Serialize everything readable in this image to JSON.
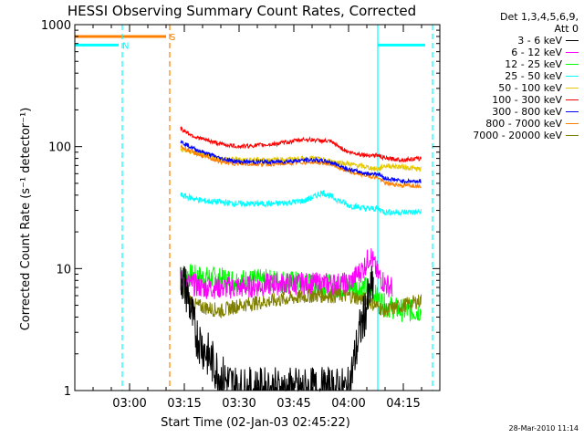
{
  "chart_data": {
    "type": "line",
    "title": "HESSI Observing Summary Count Rates, Corrected",
    "xlabel": "Start Time (02-Jan-03 02:45:22)",
    "ylabel": "Corrected Count Rate (s⁻¹ detector⁻¹)",
    "yscale": "log",
    "ylim": [
      1,
      1000
    ],
    "xlim": [
      "02:45",
      "04:25"
    ],
    "x_ticks": [
      "03:00",
      "03:15",
      "03:30",
      "03:45",
      "04:00",
      "04:15"
    ],
    "y_ticks": [
      "1",
      "10",
      "100",
      "1000"
    ],
    "legend_header": [
      "Det 1,3,4,5,6,9,",
      "Att 0"
    ],
    "legend_position": "right",
    "series": [
      {
        "name": "3 - 6 keV",
        "color": "#000000",
        "x": [
          "03:14",
          "03:16",
          "03:18",
          "03:20",
          "03:25",
          "03:30",
          "03:40",
          "03:50",
          "03:55",
          "04:00",
          "04:03",
          "04:05",
          "04:07"
        ],
        "values": [
          9,
          6,
          3,
          2.3,
          1.3,
          1,
          1,
          1,
          1,
          1,
          3,
          5,
          8
        ]
      },
      {
        "name": "6 - 12 keV",
        "color": "#ff00ff",
        "x": [
          "03:14",
          "03:20",
          "03:30",
          "03:40",
          "03:50",
          "04:00",
          "04:04",
          "04:06",
          "04:08",
          "04:10",
          "04:12"
        ],
        "values": [
          8,
          7,
          7,
          7.5,
          7.5,
          7.5,
          10,
          13,
          9,
          7.5,
          7
        ]
      },
      {
        "name": "12 - 25 keV",
        "color": "#00ff00",
        "x": [
          "03:14",
          "03:20",
          "03:30",
          "03:40",
          "03:50",
          "04:00",
          "04:05",
          "04:10",
          "04:15",
          "04:20"
        ],
        "values": [
          9,
          8.5,
          8,
          8,
          7.5,
          7,
          7,
          5,
          4.5,
          4.5
        ]
      },
      {
        "name": "25 - 50 keV",
        "color": "#00ffff",
        "x": [
          "03:14",
          "03:20",
          "03:30",
          "03:40",
          "03:48",
          "03:53",
          "04:00",
          "04:05",
          "04:08",
          "04:10",
          "04:15",
          "04:20"
        ],
        "values": [
          40,
          36,
          34,
          34,
          36,
          42,
          33,
          31,
          31,
          29,
          29,
          29
        ]
      },
      {
        "name": "50 - 100 keV",
        "color": "#e6c800",
        "x": [
          "03:14",
          "03:20",
          "03:25",
          "03:30",
          "03:40",
          "03:50",
          "04:00",
          "04:05",
          "04:08",
          "04:10",
          "04:15",
          "04:20"
        ],
        "values": [
          95,
          85,
          80,
          78,
          78,
          80,
          72,
          68,
          65,
          70,
          68,
          65
        ]
      },
      {
        "name": "100 - 300 keV",
        "color": "#ff0000",
        "x": [
          "03:14",
          "03:18",
          "03:25",
          "03:30",
          "03:40",
          "03:48",
          "03:55",
          "04:00",
          "04:05",
          "04:08",
          "04:10",
          "04:15",
          "04:20"
        ],
        "values": [
          140,
          120,
          105,
          100,
          105,
          115,
          110,
          90,
          85,
          85,
          80,
          78,
          80
        ]
      },
      {
        "name": "300 - 800 keV",
        "color": "#0000ff",
        "x": [
          "03:14",
          "03:18",
          "03:25",
          "03:30",
          "03:40",
          "03:50",
          "03:55",
          "04:00",
          "04:05",
          "04:08",
          "04:10",
          "04:15",
          "04:20"
        ],
        "values": [
          110,
          95,
          80,
          75,
          75,
          78,
          75,
          65,
          60,
          60,
          55,
          52,
          52
        ]
      },
      {
        "name": "800 - 7000 keV",
        "color": "#ff8000",
        "x": [
          "03:14",
          "03:18",
          "03:25",
          "03:30",
          "03:40",
          "03:50",
          "03:55",
          "04:00",
          "04:05",
          "04:08",
          "04:10",
          "04:15",
          "04:20"
        ],
        "values": [
          100,
          88,
          75,
          72,
          72,
          75,
          72,
          62,
          58,
          56,
          50,
          48,
          48
        ]
      },
      {
        "name": "7000 - 20000 keV",
        "color": "#808000",
        "x": [
          "03:14",
          "03:18",
          "03:25",
          "03:30",
          "03:40",
          "03:50",
          "04:00",
          "04:05",
          "04:10",
          "04:15",
          "04:20"
        ],
        "values": [
          7,
          5,
          4.5,
          5,
          5.5,
          6,
          6,
          5.5,
          4.5,
          5,
          5.5
        ]
      }
    ],
    "markers": [
      {
        "label": "N",
        "color": "#00ffff",
        "start": "02:45",
        "end": "02:57",
        "level": 680
      },
      {
        "label": "S",
        "color": "#ff8000",
        "start": "02:45",
        "end": "03:10",
        "level": 800
      }
    ],
    "vertical_lines": [
      {
        "x": "02:58",
        "color": "#00ffff",
        "style": "dashed"
      },
      {
        "x": "03:11",
        "color": "#ff8000",
        "style": "dashed"
      },
      {
        "x": "04:08",
        "color": "#00ffff",
        "style": "solid"
      },
      {
        "x": "04:23",
        "color": "#00ffff",
        "style": "dashed"
      }
    ],
    "timestamp": "28-Mar-2010 11:14"
  }
}
